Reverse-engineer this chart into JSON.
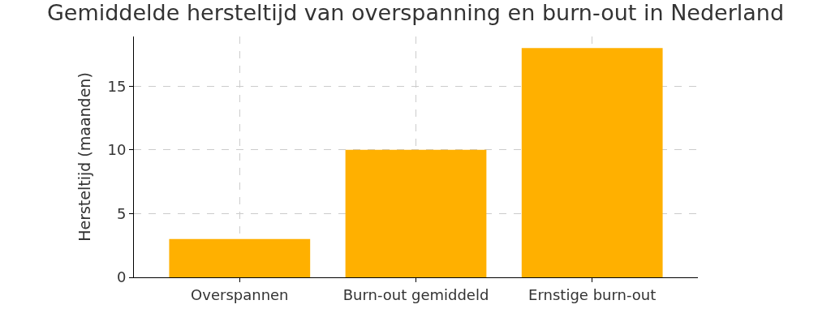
{
  "chart_data": {
    "type": "bar",
    "title": "Gemiddelde hersteltijd van overspanning en burn-out in Nederland",
    "ylabel": "Hersteltijd (maanden)",
    "categories": [
      "Overspannen",
      "Burn-out gemiddeld",
      "Ernstige burn-out"
    ],
    "values": [
      3,
      10,
      18
    ],
    "color": "#ffb000",
    "ylim": [
      0,
      18.9
    ],
    "yticks": [
      0,
      5,
      10,
      15
    ],
    "grid": true
  }
}
